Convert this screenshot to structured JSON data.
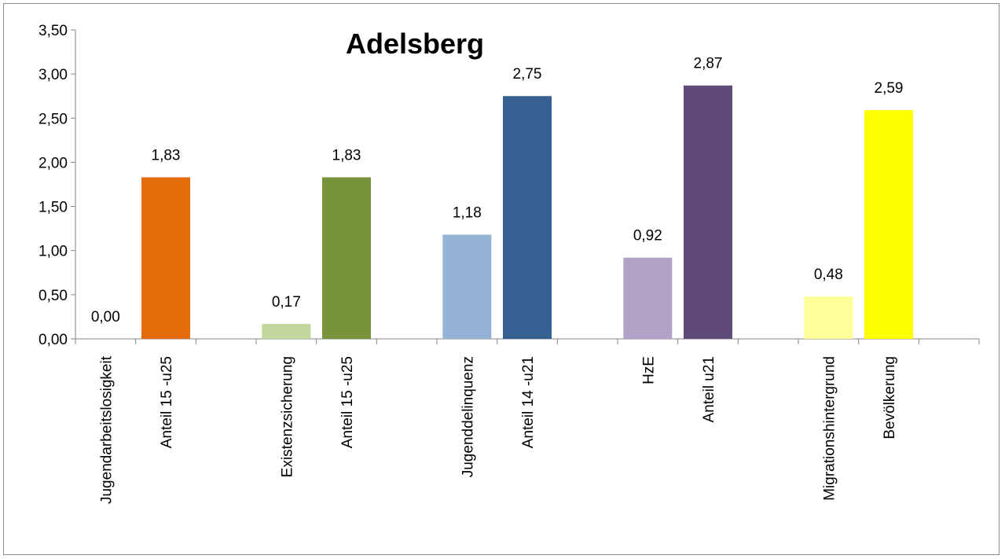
{
  "chart_data": {
    "type": "bar",
    "title": "Adelsberg",
    "xlabel": "",
    "ylabel": "",
    "ylim": [
      0,
      3.5
    ],
    "ytick_step": 0.5,
    "grid": false,
    "legend": "none",
    "categories": [
      "Jugendarbeitslosigkeit",
      "Anteil  15 -u25",
      "Existenzsicherung",
      "Anteil 15 -u25",
      "Jugenddelinquenz",
      "Anteil 14 -u21",
      "HzE",
      "Anteil u21",
      "Migrationshintergrund",
      "Bevölkerung"
    ],
    "values": [
      0.0,
      1.83,
      0.17,
      1.83,
      1.18,
      2.75,
      0.92,
      2.87,
      0.48,
      2.59
    ],
    "value_labels": [
      "0,00",
      "1,83",
      "0,17",
      "1,83",
      "1,18",
      "2,75",
      "0,92",
      "2,87",
      "0,48",
      "2,59"
    ],
    "ytick_labels": [
      "0,00",
      "0,50",
      "1,00",
      "1,50",
      "2,00",
      "2,50",
      "3,00",
      "3,50"
    ],
    "colors": [
      "#e46c0a",
      "#e46c0a",
      "#c3d69b",
      "#77933c",
      "#95b3d7",
      "#366092",
      "#b3a2c7",
      "#604a7b",
      "#ffff99",
      "#ffff00"
    ]
  }
}
